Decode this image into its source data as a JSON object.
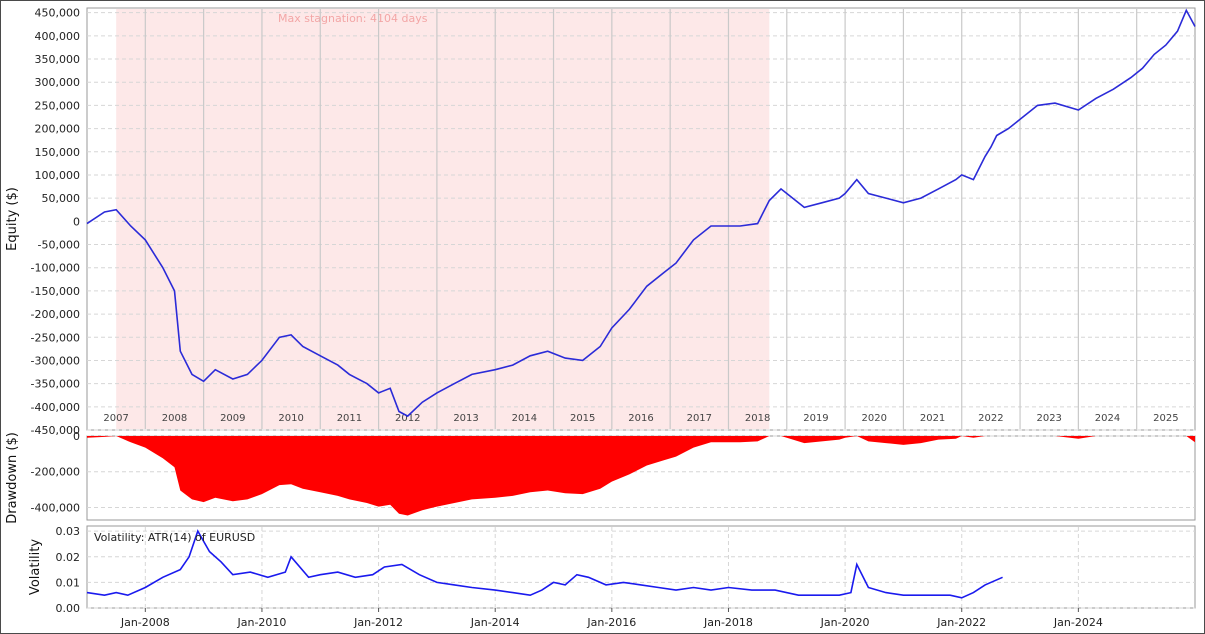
{
  "chart_data": [
    {
      "type": "line",
      "ylabel": "Equity ($)",
      "ylim": [
        -450000,
        460000
      ],
      "yticks": [
        -450000,
        -400000,
        -350000,
        -300000,
        -250000,
        -200000,
        -150000,
        -100000,
        -50000,
        0,
        50000,
        100000,
        150000,
        200000,
        250000,
        300000,
        350000,
        400000,
        450000
      ],
      "ytick_labels": [
        "-450,000",
        "-400,000",
        "-350,000",
        "-300,000",
        "-250,000",
        "-200,000",
        "-150,000",
        "-100,000",
        "-50,000",
        "0",
        "50,000",
        "100,000",
        "150,000",
        "200,000",
        "250,000",
        "300,000",
        "350,000",
        "400,000",
        "450,000"
      ],
      "year_labels": [
        "2007",
        "2008",
        "2009",
        "2010",
        "2011",
        "2012",
        "2013",
        "2014",
        "2015",
        "2016",
        "2017",
        "2018",
        "2019",
        "2020",
        "2021",
        "2022",
        "2023",
        "2024",
        "2025"
      ],
      "year_boundaries": [
        2008,
        2009,
        2010,
        2011,
        2012,
        2013,
        2014,
        2015,
        2016,
        2017,
        2018,
        2019,
        2020,
        2021,
        2022,
        2023,
        2024,
        2025
      ],
      "xlim": [
        2007.0,
        2026.0
      ],
      "stagnation": {
        "x": [
          2007.5,
          2018.7
        ],
        "label": "Max stagnation: 4104 days",
        "color": "#fde8e8"
      },
      "series": [
        {
          "color": "#2b2bd8",
          "x": [
            2007.0,
            2007.3,
            2007.5,
            2007.75,
            2008.0,
            2008.3,
            2008.5,
            2008.6,
            2008.8,
            2009.0,
            2009.2,
            2009.5,
            2009.75,
            2010.0,
            2010.3,
            2010.5,
            2010.7,
            2011.0,
            2011.3,
            2011.5,
            2011.8,
            2012.0,
            2012.2,
            2012.35,
            2012.5,
            2012.75,
            2013.0,
            2013.3,
            2013.6,
            2014.0,
            2014.3,
            2014.6,
            2014.9,
            2015.2,
            2015.5,
            2015.8,
            2016.0,
            2016.3,
            2016.6,
            2016.9,
            2017.1,
            2017.4,
            2017.7,
            2017.9,
            2018.2,
            2018.5,
            2018.7,
            2018.9,
            2019.0,
            2019.3,
            2019.6,
            2019.9,
            2020.0,
            2020.2,
            2020.4,
            2020.7,
            2021.0,
            2021.3,
            2021.6,
            2021.9,
            2022.0,
            2022.2,
            2022.4,
            2022.5,
            2022.6,
            2022.8,
            2023.0,
            2023.3,
            2023.6,
            2024.0,
            2024.3,
            2024.6,
            2024.9,
            2025.1,
            2025.3,
            2025.5,
            2025.7,
            2025.85,
            2026.0
          ],
          "y": [
            -5000,
            20000,
            25000,
            -10000,
            -40000,
            -100000,
            -150000,
            -280000,
            -330000,
            -345000,
            -320000,
            -340000,
            -330000,
            -300000,
            -250000,
            -245000,
            -270000,
            -290000,
            -310000,
            -330000,
            -350000,
            -370000,
            -360000,
            -410000,
            -420000,
            -390000,
            -370000,
            -350000,
            -330000,
            -320000,
            -310000,
            -290000,
            -280000,
            -295000,
            -300000,
            -270000,
            -230000,
            -190000,
            -140000,
            -110000,
            -90000,
            -40000,
            -10000,
            -10000,
            -10000,
            -5000,
            45000,
            70000,
            60000,
            30000,
            40000,
            50000,
            60000,
            90000,
            60000,
            50000,
            40000,
            50000,
            70000,
            90000,
            100000,
            90000,
            140000,
            160000,
            185000,
            200000,
            220000,
            250000,
            255000,
            240000,
            265000,
            285000,
            310000,
            330000,
            360000,
            380000,
            410000,
            455000,
            420000
          ]
        }
      ]
    },
    {
      "type": "area",
      "ylabel": "Drawdown ($)",
      "ylim": [
        -470000,
        0
      ],
      "yticks": [
        0,
        -200000,
        -400000
      ],
      "ytick_labels": [
        "0",
        "-200,000",
        "-400,000"
      ],
      "xlim": [
        2007.0,
        2026.0
      ],
      "series": [
        {
          "color": "#ff0000",
          "x": [
            2007.0,
            2007.3,
            2007.5,
            2007.75,
            2008.0,
            2008.3,
            2008.5,
            2008.6,
            2008.8,
            2009.0,
            2009.2,
            2009.5,
            2009.75,
            2010.0,
            2010.3,
            2010.5,
            2010.7,
            2011.0,
            2011.3,
            2011.5,
            2011.8,
            2012.0,
            2012.2,
            2012.35,
            2012.5,
            2012.75,
            2013.0,
            2013.3,
            2013.6,
            2014.0,
            2014.3,
            2014.6,
            2014.9,
            2015.2,
            2015.5,
            2015.8,
            2016.0,
            2016.3,
            2016.6,
            2016.9,
            2017.1,
            2017.4,
            2017.7,
            2017.9,
            2018.2,
            2018.5,
            2018.7,
            2018.9,
            2019.0,
            2019.3,
            2019.6,
            2019.9,
            2020.0,
            2020.2,
            2020.4,
            2020.7,
            2021.0,
            2021.3,
            2021.6,
            2021.9,
            2022.0,
            2022.2,
            2022.4,
            2022.5,
            2022.6,
            2022.8,
            2023.0,
            2023.3,
            2023.6,
            2024.0,
            2024.3,
            2024.6,
            2024.9,
            2025.1,
            2025.3,
            2025.5,
            2025.7,
            2025.85,
            2026.0
          ],
          "y": [
            -10000,
            -5000,
            0,
            -35000,
            -65000,
            -125000,
            -175000,
            -305000,
            -355000,
            -370000,
            -345000,
            -365000,
            -355000,
            -325000,
            -275000,
            -270000,
            -295000,
            -315000,
            -335000,
            -355000,
            -375000,
            -395000,
            -385000,
            -435000,
            -445000,
            -415000,
            -395000,
            -375000,
            -355000,
            -345000,
            -335000,
            -315000,
            -305000,
            -320000,
            -325000,
            -295000,
            -255000,
            -215000,
            -165000,
            -135000,
            -115000,
            -65000,
            -35000,
            -35000,
            -35000,
            -30000,
            0,
            0,
            -10000,
            -40000,
            -30000,
            -20000,
            -10000,
            0,
            -30000,
            -40000,
            -50000,
            -40000,
            -20000,
            -15000,
            0,
            -10000,
            0,
            0,
            0,
            0,
            0,
            0,
            0,
            -15000,
            0,
            0,
            0,
            0,
            0,
            0,
            0,
            0,
            -35000
          ]
        }
      ]
    },
    {
      "type": "line",
      "title": "Volatility: ATR(14) of EURUSD",
      "ylabel": "Volatility",
      "ylim": [
        0,
        0.032
      ],
      "yticks": [
        0,
        0.01,
        0.02,
        0.03
      ],
      "ytick_labels": [
        "0.00",
        "0.01",
        "0.02",
        "0.03"
      ],
      "xticks": [
        2008.0,
        2010.0,
        2012.0,
        2014.0,
        2016.0,
        2018.0,
        2020.0,
        2022.0,
        2024.0
      ],
      "xtick_labels": [
        "Jan-2008",
        "Jan-2010",
        "Jan-2012",
        "Jan-2014",
        "Jan-2016",
        "Jan-2018",
        "Jan-2020",
        "Jan-2022",
        "Jan-2024"
      ],
      "xlim": [
        2007.0,
        2026.0
      ],
      "series": [
        {
          "color": "#1a1aee",
          "x": [
            2007.0,
            2007.3,
            2007.5,
            2007.7,
            2008.0,
            2008.3,
            2008.6,
            2008.75,
            2008.9,
            2009.1,
            2009.3,
            2009.5,
            2009.8,
            2010.1,
            2010.4,
            2010.5,
            2010.8,
            2011.0,
            2011.3,
            2011.6,
            2011.9,
            2012.1,
            2012.4,
            2012.7,
            2013.0,
            2013.3,
            2013.6,
            2014.0,
            2014.3,
            2014.6,
            2014.8,
            2015.0,
            2015.2,
            2015.4,
            2015.6,
            2015.9,
            2016.2,
            2016.5,
            2016.8,
            2017.1,
            2017.4,
            2017.7,
            2018.0,
            2018.4,
            2018.8,
            2019.2,
            2019.6,
            2019.9,
            2020.1,
            2020.2,
            2020.4,
            2020.7,
            2021.0,
            2021.4,
            2021.8,
            2022.0,
            2022.2,
            2022.4,
            2022.7
          ],
          "y": [
            0.006,
            0.005,
            0.006,
            0.005,
            0.008,
            0.012,
            0.015,
            0.02,
            0.03,
            0.022,
            0.018,
            0.013,
            0.014,
            0.012,
            0.014,
            0.02,
            0.012,
            0.013,
            0.014,
            0.012,
            0.013,
            0.016,
            0.017,
            0.013,
            0.01,
            0.009,
            0.008,
            0.007,
            0.006,
            0.005,
            0.007,
            0.01,
            0.009,
            0.013,
            0.012,
            0.009,
            0.01,
            0.009,
            0.008,
            0.007,
            0.008,
            0.007,
            0.008,
            0.007,
            0.007,
            0.005,
            0.005,
            0.005,
            0.006,
            0.017,
            0.008,
            0.006,
            0.005,
            0.005,
            0.005,
            0.004,
            0.006,
            0.009,
            0.012
          ]
        }
      ]
    }
  ]
}
